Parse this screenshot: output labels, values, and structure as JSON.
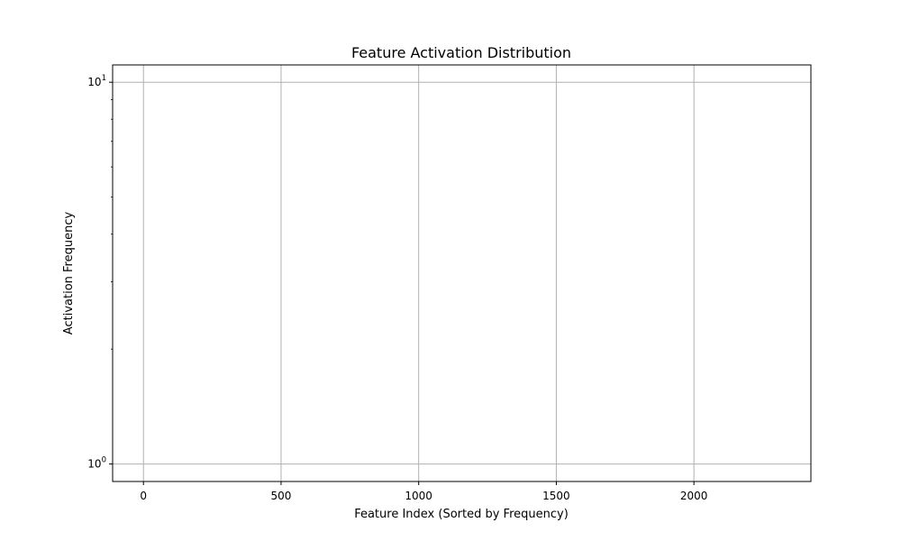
{
  "chart_data": {
    "type": "line",
    "title": "Feature Activation Distribution",
    "xlabel": "Feature Index (Sorted by Frequency)",
    "ylabel": "Activation Frequency",
    "xlim": [
      -112,
      2425
    ],
    "ylim": [
      0.9,
      11.1
    ],
    "yscale": "log",
    "grid": true,
    "x_ticks": [
      0,
      500,
      1000,
      1500,
      2000
    ],
    "x_tick_labels": [
      "0",
      "500",
      "1000",
      "1500",
      "2000"
    ],
    "y_ticks": [
      {
        "value": 1,
        "base": "10",
        "exp": "0"
      },
      {
        "value": 10,
        "base": "10",
        "exp": "1"
      }
    ],
    "y_minor_ticks": [
      2,
      3,
      4,
      5,
      6,
      7,
      8,
      9
    ],
    "series": []
  }
}
